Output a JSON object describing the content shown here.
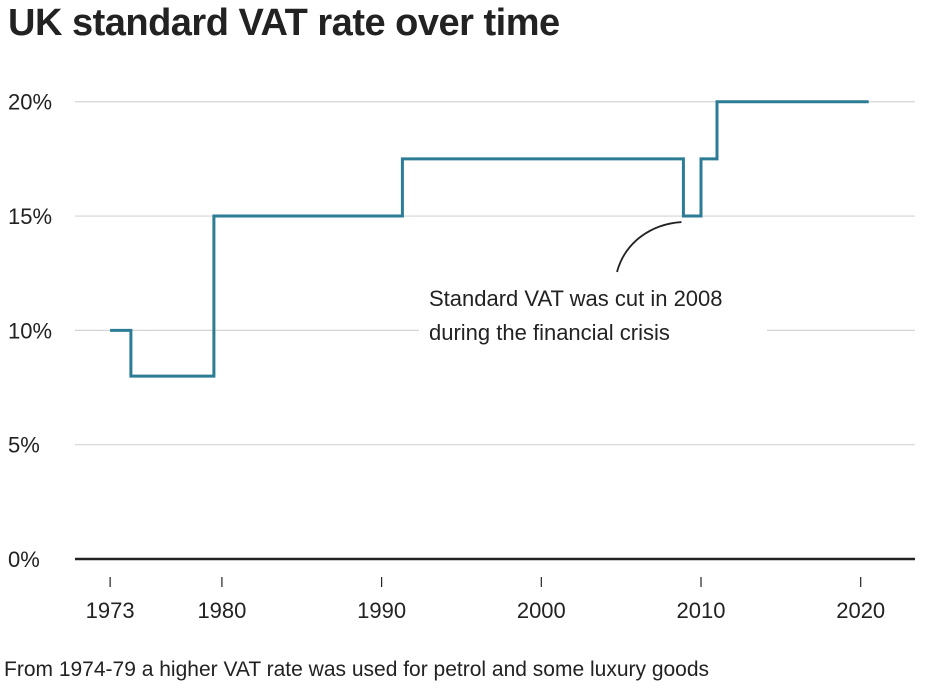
{
  "chart_data": {
    "type": "line",
    "title": "UK standard VAT rate over time",
    "xlabel": "",
    "ylabel": "",
    "x_ticks": [
      1973,
      1980,
      1990,
      2000,
      2010,
      2020
    ],
    "y_ticks": [
      0,
      5,
      10,
      15,
      20
    ],
    "y_tick_labels": [
      "0%",
      "5%",
      "10%",
      "15%",
      "20%"
    ],
    "xlim": [
      1970.8,
      2023.4
    ],
    "ylim": [
      0,
      21.3
    ],
    "grid": true,
    "legend": "none",
    "line_style": "step",
    "line_color": "#2b7c94",
    "series": [
      {
        "x": [
          1973.0,
          1974.3,
          1974.3,
          1979.5,
          1979.5,
          1991.3,
          1991.3,
          2008.9,
          2008.9,
          2010.0,
          2010.0,
          2011.0,
          2011.0,
          2020.5
        ],
        "values": [
          10,
          10,
          8,
          8,
          15,
          15,
          17.5,
          17.5,
          15,
          15,
          17.5,
          17.5,
          20,
          20
        ]
      }
    ],
    "annotation": {
      "lines": [
        "Standard VAT was cut in 2008",
        "during the financial crisis"
      ],
      "target_x": 2008.9,
      "target_y": 15
    },
    "footnote": "From 1974-79 a higher VAT rate was used for petrol and some luxury goods"
  }
}
